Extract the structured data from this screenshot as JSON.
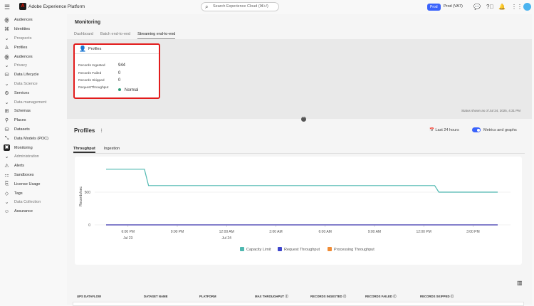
{
  "header": {
    "app_name": "Adobe Experience Platform",
    "search_placeholder": "Search Experience Cloud (⌘+/)",
    "sandbox_badge": "Prod",
    "sandbox_name": "Prod (VA7)"
  },
  "sidebar": {
    "items": [
      {
        "label": "Audiences",
        "icon": "audiences-icon",
        "type": "item"
      },
      {
        "label": "Identities",
        "icon": "identities-icon",
        "type": "item"
      },
      {
        "label": "Prospects",
        "type": "section"
      },
      {
        "label": "Profiles",
        "icon": "profile-icon",
        "type": "item"
      },
      {
        "label": "Audiences",
        "icon": "audiences-icon",
        "type": "item"
      },
      {
        "label": "Privacy",
        "type": "section"
      },
      {
        "label": "Data Lifecycle",
        "icon": "data-lifecycle-icon",
        "type": "item"
      },
      {
        "label": "Data Science",
        "type": "section"
      },
      {
        "label": "Services",
        "icon": "services-icon",
        "type": "item"
      },
      {
        "label": "Data management",
        "type": "section"
      },
      {
        "label": "Schemas",
        "icon": "schemas-icon",
        "type": "item"
      },
      {
        "label": "Places",
        "icon": "places-icon",
        "type": "item"
      },
      {
        "label": "Datasets",
        "icon": "datasets-icon",
        "type": "item"
      },
      {
        "label": "Data Models (POC)",
        "icon": "data-models-icon",
        "type": "item"
      },
      {
        "label": "Monitoring",
        "icon": "monitoring-icon",
        "type": "item",
        "active": true
      },
      {
        "label": "Administration",
        "type": "section"
      },
      {
        "label": "Alerts",
        "icon": "alerts-icon",
        "type": "item"
      },
      {
        "label": "Sandboxes",
        "icon": "sandboxes-icon",
        "type": "item"
      },
      {
        "label": "License Usage",
        "icon": "license-icon",
        "type": "item"
      },
      {
        "label": "Tags",
        "icon": "tags-icon",
        "type": "item"
      },
      {
        "label": "Data Collection",
        "type": "section"
      },
      {
        "label": "Assurance",
        "icon": "assurance-icon",
        "type": "item"
      }
    ]
  },
  "main": {
    "title": "Monitoring",
    "tabs": [
      "Dashboard",
      "Batch end-to-end",
      "Streaming end-to-end"
    ],
    "active_tab": "Streaming end-to-end",
    "card": {
      "title": "Profiles",
      "rows": [
        {
          "label": "Records Ingested",
          "value": "944"
        },
        {
          "label": "Records Failed",
          "value": "0"
        },
        {
          "label": "Records Skipped",
          "value": "0"
        },
        {
          "label": "RequestThroughput",
          "value": "Normal"
        }
      ]
    },
    "status": "Status shown as of Jul 24, 2025, 4:31 PM",
    "section_title": "Profiles",
    "section_more": "⁝",
    "range": "Last 24 hours",
    "toggle_label": "Metrics and graphs",
    "toggle_on": true,
    "subtabs": [
      "Throughput",
      "Ingestion"
    ],
    "table_headers": [
      "UPS DATAFLOW",
      "DATASET NAME",
      "PLATFORM",
      "MAX THROUGHPUT ⓘ",
      "RECORDS INGESTED ⓘ",
      "RECORDS FAILED ⓘ",
      "RECORDS SKIPPED ⓘ"
    ]
  },
  "chart_data": {
    "type": "line",
    "ylabel": "Records/sec",
    "yticks": [
      0,
      500
    ],
    "ylim": [
      0,
      900
    ],
    "xticks": [
      {
        "t": "2025-07-23T18:00",
        "label": "6:00 PM",
        "sub": "Jul 23"
      },
      {
        "t": "2025-07-23T21:00",
        "label": "9:00 PM",
        "sub": ""
      },
      {
        "t": "2025-07-24T00:00",
        "label": "12:00 AM",
        "sub": "Jul 24"
      },
      {
        "t": "2025-07-24T03:00",
        "label": "3:00 AM",
        "sub": ""
      },
      {
        "t": "2025-07-24T06:00",
        "label": "6:00 AM",
        "sub": ""
      },
      {
        "t": "2025-07-24T09:00",
        "label": "9:00 AM",
        "sub": ""
      },
      {
        "t": "2025-07-24T12:00",
        "label": "12:00 PM",
        "sub": ""
      },
      {
        "t": "2025-07-24T15:00",
        "label": "3:00 PM",
        "sub": ""
      }
    ],
    "xlim": [
      "2025-07-23T16:40",
      "2025-07-24T16:30"
    ],
    "legend": "bottom",
    "grid": "horizontal",
    "series": [
      {
        "name": "Capacity Limit",
        "color": "#4fb8b0",
        "points": [
          [
            "2025-07-23T16:40",
            850
          ],
          [
            "2025-07-23T19:00",
            850
          ],
          [
            "2025-07-23T19:15",
            600
          ],
          [
            "2025-07-24T12:40",
            600
          ],
          [
            "2025-07-24T12:55",
            500
          ],
          [
            "2025-07-24T16:30",
            500
          ]
        ]
      },
      {
        "name": "Request Throughput",
        "color": "#3d45cc",
        "points": [
          [
            "2025-07-23T16:40",
            0
          ],
          [
            "2025-07-24T16:30",
            0
          ]
        ]
      },
      {
        "name": "Processing Throughput",
        "color": "#f08c36",
        "points": [
          [
            "2025-07-23T16:40",
            0
          ],
          [
            "2025-07-24T16:30",
            0
          ]
        ]
      }
    ]
  }
}
